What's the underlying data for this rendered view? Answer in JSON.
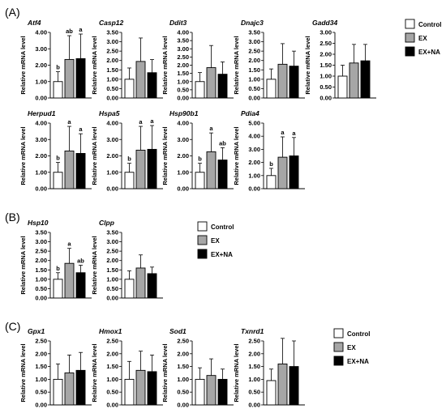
{
  "panels": [
    "(A)",
    "(B)",
    "(C)"
  ],
  "legend": [
    {
      "label": "Control",
      "color": "#ffffff"
    },
    {
      "label": "EX",
      "color": "#a6a6a6"
    },
    {
      "label": "EX+NA",
      "color": "#000000"
    }
  ],
  "chart_data": [
    {
      "type": "bar",
      "title": "Atf4",
      "ylabel": "Relative mRNA level",
      "ylim": [
        0,
        4
      ],
      "ticks": [
        "0.00",
        "1.00",
        "2.00",
        "3.00",
        "4.00"
      ],
      "categories": [
        "Control",
        "EX",
        "EX+NA"
      ],
      "values": [
        1.0,
        2.35,
        2.4
      ],
      "errors": [
        0.6,
        1.45,
        1.5
      ],
      "significance": [
        "b",
        "ab",
        "a"
      ]
    },
    {
      "type": "bar",
      "title": "Casp12",
      "ylabel": "Relative mRNA level",
      "ylim": [
        0,
        3.5
      ],
      "ticks": [
        "0.00",
        "0.50",
        "1.00",
        "1.50",
        "2.00",
        "2.50",
        "3.00",
        "3.50"
      ],
      "categories": [
        "Control",
        "EX",
        "EX+NA"
      ],
      "values": [
        1.0,
        1.95,
        1.35
      ],
      "errors": [
        0.6,
        1.25,
        0.7
      ],
      "significance": [
        "",
        "",
        ""
      ]
    },
    {
      "type": "bar",
      "title": "Ddit3",
      "ylabel": "Relative mRNA level",
      "ylim": [
        0,
        4
      ],
      "ticks": [
        "0.00",
        "0.50",
        "1.00",
        "1.50",
        "2.00",
        "2.50",
        "3.00",
        "3.50",
        "4.00"
      ],
      "categories": [
        "Control",
        "EX",
        "EX+NA"
      ],
      "values": [
        1.0,
        1.85,
        1.45
      ],
      "errors": [
        0.55,
        1.35,
        0.75
      ],
      "significance": [
        "",
        "",
        ""
      ]
    },
    {
      "type": "bar",
      "title": "Dnajc3",
      "ylabel": "Relative mRNA level",
      "ylim": [
        0,
        3.5
      ],
      "ticks": [
        "0.00",
        "0.50",
        "1.00",
        "1.50",
        "2.00",
        "2.50",
        "3.00",
        "3.50"
      ],
      "categories": [
        "Control",
        "EX",
        "EX+NA"
      ],
      "values": [
        1.0,
        1.8,
        1.7
      ],
      "errors": [
        0.55,
        1.1,
        0.8
      ],
      "significance": [
        "",
        "",
        ""
      ]
    },
    {
      "type": "bar",
      "title": "Gadd34",
      "ylabel": "Relative mRNA level",
      "ylim": [
        0,
        3.0
      ],
      "ticks": [
        "0.00",
        "0.50",
        "1.00",
        "1.50",
        "2.00",
        "2.50",
        "3.00"
      ],
      "categories": [
        "Control",
        "EX",
        "EX+NA"
      ],
      "values": [
        1.0,
        1.6,
        1.7
      ],
      "errors": [
        0.5,
        0.85,
        0.75
      ],
      "significance": [
        "",
        "",
        ""
      ]
    },
    {
      "type": "bar",
      "title": "Herpud1",
      "ylabel": "Relative mRNA level",
      "ylim": [
        0,
        4
      ],
      "ticks": [
        "0.00",
        "1.00",
        "2.00",
        "3.00",
        "4.00"
      ],
      "categories": [
        "Control",
        "EX",
        "EX+NA"
      ],
      "values": [
        1.0,
        2.3,
        2.15
      ],
      "errors": [
        0.6,
        1.5,
        1.2
      ],
      "significance": [
        "b",
        "a",
        "a"
      ]
    },
    {
      "type": "bar",
      "title": "Hspa5",
      "ylabel": "Relative mRNA level",
      "ylim": [
        0,
        4
      ],
      "ticks": [
        "0.00",
        "1.00",
        "2.00",
        "3.00",
        "4.00"
      ],
      "categories": [
        "Control",
        "EX",
        "EX+NA"
      ],
      "values": [
        1.0,
        2.35,
        2.4
      ],
      "errors": [
        0.55,
        1.45,
        1.45
      ],
      "significance": [
        "b",
        "a",
        "a"
      ]
    },
    {
      "type": "bar",
      "title": "Hsp90b1",
      "ylabel": "Relative mRNA level",
      "ylim": [
        0,
        4
      ],
      "ticks": [
        "0.00",
        "1.00",
        "2.00",
        "3.00",
        "4.00"
      ],
      "categories": [
        "Control",
        "EX",
        "EX+NA"
      ],
      "values": [
        1.0,
        2.25,
        1.75
      ],
      "errors": [
        0.55,
        1.15,
        0.75
      ],
      "significance": [
        "b",
        "a",
        "ab"
      ]
    },
    {
      "type": "bar",
      "title": "Pdia4",
      "ylabel": "Relative mRNA level",
      "ylim": [
        0,
        5
      ],
      "ticks": [
        "0.00",
        "1.00",
        "2.00",
        "3.00",
        "4.00",
        "5.00"
      ],
      "categories": [
        "Control",
        "EX",
        "EX+NA"
      ],
      "values": [
        1.0,
        2.4,
        2.5
      ],
      "errors": [
        0.55,
        1.55,
        1.4
      ],
      "significance": [
        "b",
        "a",
        "a"
      ]
    },
    {
      "type": "bar",
      "title": "Hsp10",
      "ylabel": "Relative mRNA level",
      "ylim": [
        0,
        3.5
      ],
      "ticks": [
        "0.00",
        "0.50",
        "1.00",
        "1.50",
        "2.00",
        "2.50",
        "3.00",
        "3.50"
      ],
      "categories": [
        "Control",
        "EX",
        "EX+NA"
      ],
      "values": [
        1.0,
        1.85,
        1.35
      ],
      "errors": [
        0.35,
        0.8,
        0.4
      ],
      "significance": [
        "b",
        "a",
        "ab"
      ]
    },
    {
      "type": "bar",
      "title": "Clpp",
      "ylabel": "Relative mRNA level",
      "ylim": [
        0,
        3.5
      ],
      "ticks": [
        "0.00",
        "0.50",
        "1.00",
        "1.50",
        "2.00",
        "2.50",
        "3.00",
        "3.50"
      ],
      "categories": [
        "Control",
        "EX",
        "EX+NA"
      ],
      "values": [
        1.0,
        1.6,
        1.3
      ],
      "errors": [
        0.45,
        0.7,
        0.35
      ],
      "significance": [
        "",
        "",
        ""
      ]
    },
    {
      "type": "bar",
      "title": "Gpx1",
      "ylabel": "Relative mRNA level",
      "ylim": [
        0,
        2.5
      ],
      "ticks": [
        "0.00",
        "0.50",
        "1.00",
        "1.50",
        "2.00",
        "2.50"
      ],
      "categories": [
        "Control",
        "EX",
        "EX+NA"
      ],
      "values": [
        1.0,
        1.25,
        1.35
      ],
      "errors": [
        0.6,
        0.7,
        0.7
      ],
      "significance": [
        "",
        "",
        ""
      ]
    },
    {
      "type": "bar",
      "title": "Hmox1",
      "ylabel": "Relative mRNA level",
      "ylim": [
        0,
        2.5
      ],
      "ticks": [
        "0.00",
        "0.50",
        "1.00",
        "1.50",
        "2.00",
        "2.50"
      ],
      "categories": [
        "Control",
        "EX",
        "EX+NA"
      ],
      "values": [
        1.0,
        1.35,
        1.3
      ],
      "errors": [
        0.7,
        0.75,
        0.65
      ],
      "significance": [
        "",
        "",
        ""
      ]
    },
    {
      "type": "bar",
      "title": "Sod1",
      "ylabel": "Relative mRNA level",
      "ylim": [
        0,
        2.5
      ],
      "ticks": [
        "0.00",
        "0.50",
        "1.00",
        "1.50",
        "2.00",
        "2.50"
      ],
      "categories": [
        "Control",
        "EX",
        "EX+NA"
      ],
      "values": [
        1.0,
        1.15,
        1.0
      ],
      "errors": [
        0.45,
        0.65,
        0.4
      ],
      "significance": [
        "",
        "",
        ""
      ]
    },
    {
      "type": "bar",
      "title": "Txnrd1",
      "ylabel": "Relative mRNA level",
      "ylim": [
        0,
        2.5
      ],
      "ticks": [
        "0.00",
        "0.50",
        "1.00",
        "1.50",
        "2.00",
        "2.50"
      ],
      "categories": [
        "Control",
        "EX",
        "EX+NA"
      ],
      "values": [
        0.95,
        1.6,
        1.5
      ],
      "errors": [
        0.45,
        1.0,
        1.0
      ],
      "significance": [
        "",
        "",
        ""
      ]
    }
  ]
}
